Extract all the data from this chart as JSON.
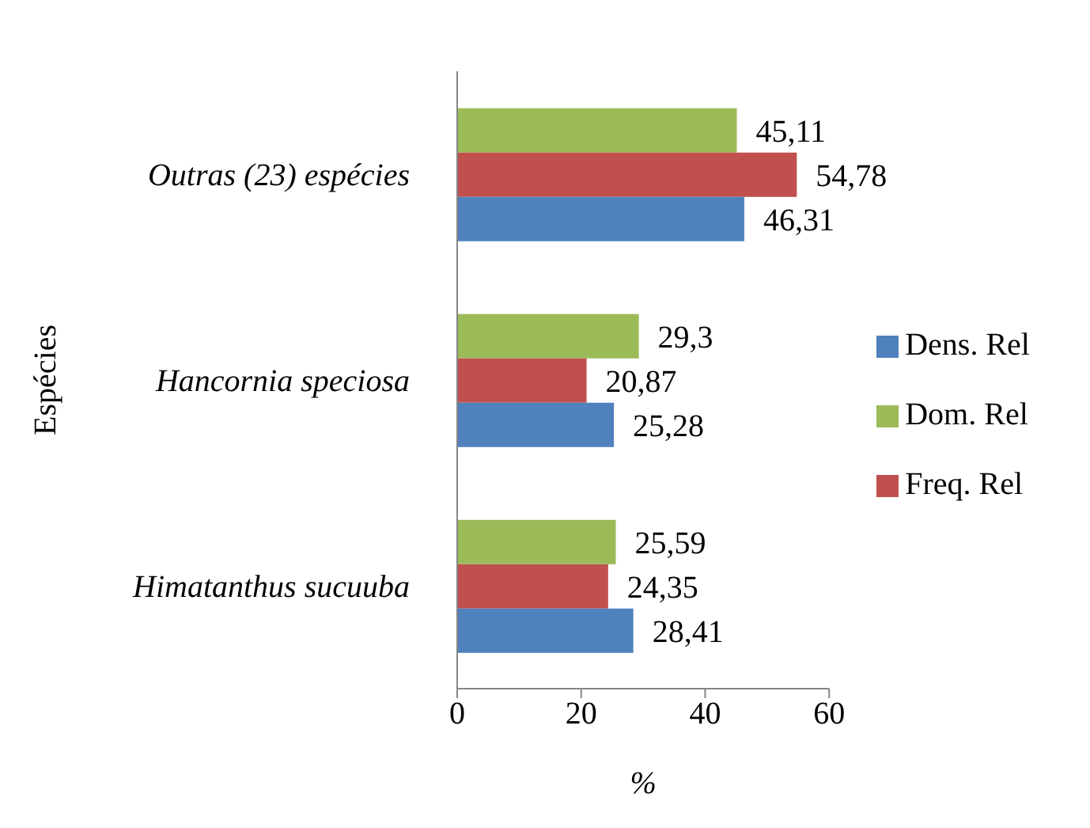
{
  "chart_data": {
    "type": "bar",
    "orientation": "horizontal",
    "xlabel": "%",
    "ylabel": "Espécies",
    "categories": [
      "Outras (23) espécies",
      "Hancornia speciosa",
      "Himatanthus sucuuba"
    ],
    "series": [
      {
        "name": "Dom. Rel",
        "color": "#9bbb59",
        "values": [
          45.11,
          29.3,
          25.59
        ],
        "value_labels": [
          "45,11",
          "29,3",
          "25,59"
        ]
      },
      {
        "name": "Freq. Rel",
        "color": "#c0504d",
        "values": [
          54.78,
          20.87,
          24.35
        ],
        "value_labels": [
          "54,78",
          "20,87",
          "24,35"
        ]
      },
      {
        "name": "Dens. Rel",
        "color": "#4f81bd",
        "values": [
          46.31,
          25.28,
          28.41
        ],
        "value_labels": [
          "46,31",
          "25,28",
          "28,41"
        ]
      }
    ],
    "xlim": [
      0,
      60
    ],
    "xticks": [
      0,
      20,
      40,
      60
    ],
    "grid": false,
    "legend": "right"
  }
}
